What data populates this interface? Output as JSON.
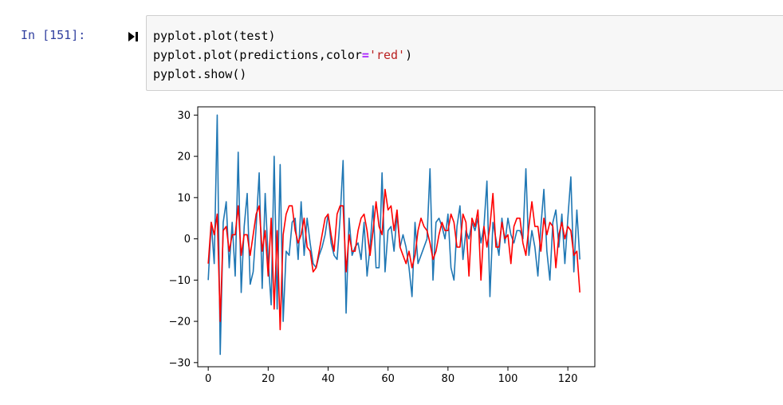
{
  "cell": {
    "prompt": "In [151]:",
    "code_lines": [
      [
        {
          "t": "pyplot.plot(test)",
          "k": "plain"
        }
      ],
      [
        {
          "t": "pyplot.plot(predictions,color",
          "k": "plain"
        },
        {
          "t": "=",
          "k": "eq"
        },
        {
          "t": "'red'",
          "k": "str"
        },
        {
          "t": ")",
          "k": "plain"
        }
      ],
      [
        {
          "t": "pyplot.show()",
          "k": "plain"
        }
      ]
    ]
  },
  "colors": {
    "prompt": "#303f9f",
    "series_test": "#1f77b4",
    "series_predictions": "#ff0000"
  },
  "icons": {
    "run": "run-cell-icon"
  },
  "chart_data": {
    "type": "line",
    "xlim": [
      -3.5,
      129
    ],
    "ylim": [
      -31,
      32
    ],
    "xticks": [
      0,
      20,
      40,
      60,
      80,
      100,
      120
    ],
    "yticks": [
      -30,
      -20,
      -10,
      0,
      10,
      20,
      30
    ],
    "grid": false,
    "legend": "none",
    "series": [
      {
        "key": "test",
        "color": "#1f77b4",
        "values": [
          -10,
          4,
          -6,
          30,
          -28,
          4,
          9,
          -7,
          4,
          -9,
          21,
          -13,
          3,
          11,
          -11,
          -8,
          3,
          16,
          -12,
          11,
          -5,
          -16,
          20,
          -17,
          18,
          -20,
          -3,
          -4,
          4,
          5,
          -5,
          9,
          -4,
          5,
          -1,
          -6,
          -7,
          -4,
          -2,
          1,
          6,
          -1,
          -4,
          -5,
          5,
          19,
          -18,
          5,
          -4,
          -2,
          -1,
          -5,
          4,
          -9,
          -2,
          8,
          -7,
          -7,
          16,
          -8,
          2,
          3,
          -3,
          6,
          -2,
          1,
          -2,
          -7,
          -14,
          4,
          -6,
          -4,
          -2,
          0,
          17,
          -10,
          4,
          5,
          3,
          0,
          6,
          -7,
          -10,
          3,
          8,
          -5,
          2,
          0,
          4,
          2,
          5,
          -1,
          3,
          14,
          -14,
          4,
          0,
          -4,
          5,
          -1,
          5,
          1,
          -1,
          2,
          2,
          0,
          17,
          -4,
          2,
          -2,
          -9,
          3,
          12,
          -3,
          -10,
          4,
          7,
          -2,
          6,
          -6,
          5,
          15,
          -8,
          7,
          -5
        ]
      },
      {
        "key": "predictions",
        "color": "#ff0000",
        "values": [
          -6,
          4,
          1,
          6,
          -20,
          2,
          3,
          -3,
          1,
          1,
          8,
          -4,
          1,
          1,
          -4,
          1,
          6,
          8,
          -3,
          2,
          -9,
          5,
          -17,
          2,
          -22,
          1,
          6,
          8,
          8,
          2,
          -1,
          1,
          5,
          -2,
          -3,
          -8,
          -7,
          -3,
          1,
          5,
          6,
          1,
          -3,
          6,
          8,
          8,
          -8,
          1,
          -3,
          -3,
          2,
          5,
          6,
          2,
          -4,
          2,
          9,
          3,
          1,
          12,
          7,
          8,
          2,
          7,
          -2,
          -4,
          -6,
          -3,
          -7,
          -4,
          2,
          5,
          3,
          2,
          -1,
          -5,
          -3,
          1,
          4,
          2,
          2,
          6,
          4,
          -2,
          -2,
          6,
          4,
          -9,
          5,
          3,
          7,
          -10,
          3,
          -2,
          3,
          11,
          -2,
          -2,
          4,
          0,
          1,
          -6,
          3,
          5,
          5,
          -1,
          -4,
          3,
          9,
          3,
          3,
          -3,
          5,
          1,
          4,
          3,
          -7,
          1,
          4,
          0,
          3,
          2,
          -4,
          -3,
          -13
        ]
      }
    ]
  }
}
